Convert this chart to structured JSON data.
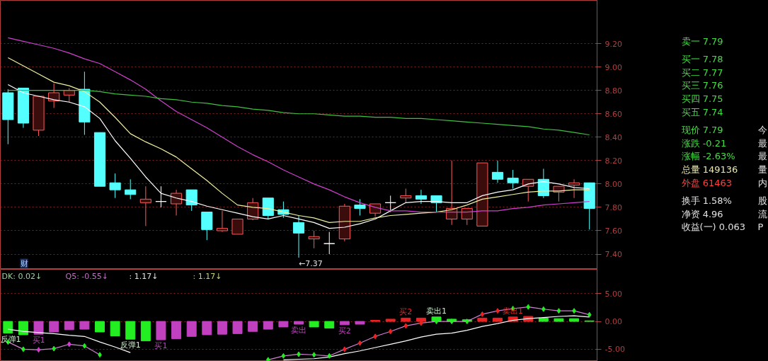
{
  "chart_data": [
    {
      "type": "candlestick",
      "categories": [
        null,
        null,
        null,
        null,
        null,
        null,
        null,
        null,
        null,
        null,
        null,
        null,
        null,
        null,
        null,
        null,
        null,
        null,
        null,
        null,
        null,
        null,
        null,
        null,
        null,
        null,
        null,
        null,
        null,
        null,
        null,
        null,
        null,
        null,
        null,
        null,
        null,
        null,
        null
      ],
      "ohlc": [
        [
          8.78,
          8.81,
          8.34,
          8.55
        ],
        [
          8.82,
          8.82,
          8.48,
          8.52
        ],
        [
          8.46,
          8.75,
          8.41,
          8.75
        ],
        [
          8.71,
          8.86,
          8.65,
          8.78
        ],
        [
          8.76,
          8.82,
          8.7,
          8.8
        ],
        [
          8.81,
          8.96,
          8.42,
          8.53
        ],
        [
          8.44,
          8.44,
          7.98,
          7.98
        ],
        [
          8.01,
          8.09,
          7.88,
          7.95
        ],
        [
          7.95,
          8.04,
          7.87,
          7.91
        ],
        [
          7.84,
          7.98,
          7.64,
          7.87
        ],
        [
          7.85,
          7.98,
          7.8,
          7.85
        ],
        [
          7.83,
          7.95,
          7.73,
          7.92
        ],
        [
          7.95,
          7.95,
          7.77,
          7.82
        ],
        [
          7.76,
          7.76,
          7.52,
          7.61
        ],
        [
          7.6,
          7.77,
          7.59,
          7.62
        ],
        [
          7.57,
          7.7,
          7.57,
          7.7
        ],
        [
          7.7,
          7.88,
          7.69,
          7.84
        ],
        [
          7.88,
          7.88,
          7.7,
          7.73
        ],
        [
          7.78,
          7.85,
          7.71,
          7.74
        ],
        [
          7.67,
          7.73,
          7.37,
          7.58
        ],
        [
          7.53,
          7.6,
          7.45,
          7.55
        ],
        [
          7.49,
          7.59,
          7.4,
          7.49
        ],
        [
          7.53,
          7.83,
          7.51,
          7.81
        ],
        [
          7.82,
          7.87,
          7.73,
          7.79
        ],
        [
          7.75,
          7.83,
          7.72,
          7.83
        ],
        [
          7.84,
          7.9,
          7.76,
          7.84
        ],
        [
          7.88,
          7.96,
          7.84,
          7.9
        ],
        [
          7.9,
          7.95,
          7.83,
          7.87
        ],
        [
          7.9,
          7.9,
          7.76,
          7.84
        ],
        [
          7.7,
          8.2,
          7.65,
          7.79
        ],
        [
          7.7,
          7.79,
          7.65,
          7.79
        ],
        [
          7.64,
          8.18,
          7.64,
          8.18
        ],
        [
          8.1,
          8.2,
          8.01,
          8.04
        ],
        [
          8.05,
          8.12,
          7.96,
          8.01
        ],
        [
          7.98,
          8.04,
          7.85,
          8.04
        ],
        [
          8.04,
          8.13,
          7.88,
          7.9
        ],
        [
          7.93,
          7.98,
          7.85,
          7.98
        ],
        [
          7.99,
          8.04,
          7.88,
          8.01
        ],
        [
          8.01,
          8.01,
          7.61,
          7.79
        ]
      ],
      "colors": [
        "#54ffff",
        "#54ffff",
        "#ff5a5a",
        "#ff5a5a",
        "#ff5a5a",
        "#54ffff",
        "#54ffff",
        "#54ffff",
        "#54ffff",
        "#ff5a5a",
        "#ffffff",
        "#ff5a5a",
        "#54ffff",
        "#54ffff",
        "#ff5a5a",
        "#ff5a5a",
        "#ff5a5a",
        "#54ffff",
        "#54ffff",
        "#54ffff",
        "#ff5a5a",
        "#ffffff",
        "#ff5a5a",
        "#54ffff",
        "#ff5a5a",
        "#ffffff",
        "#ff5a5a",
        "#54ffff",
        "#54ffff",
        "#ff5a5a",
        "#ff5a5a",
        "#ff5a5a",
        "#54ffff",
        "#54ffff",
        "#ff5a5a",
        "#54ffff",
        "#ff5a5a",
        "#ff5a5a",
        "#54ffff"
      ],
      "series": [
        {
          "type": "line",
          "color": "#ffffff",
          "values": [
            8.85,
            8.78,
            8.75,
            8.72,
            8.7,
            8.66,
            8.56,
            8.37,
            8.22,
            8.06,
            7.92,
            7.88,
            7.85,
            7.81,
            7.78,
            7.75,
            7.72,
            7.7,
            7.73,
            7.7,
            7.67,
            7.62,
            7.63,
            7.66,
            7.7,
            7.77,
            7.84,
            7.85,
            7.85,
            7.84,
            7.84,
            7.9,
            7.93,
            7.95,
            8.0,
            8.02,
            8.0,
            7.97,
            7.96
          ]
        },
        {
          "type": "line",
          "color": "#f0f0a0",
          "values": [
            9.08,
            9.01,
            8.94,
            8.87,
            8.84,
            8.79,
            8.7,
            8.57,
            8.43,
            8.36,
            8.3,
            8.23,
            8.13,
            8.03,
            7.92,
            7.82,
            7.8,
            7.79,
            7.76,
            7.73,
            7.71,
            7.67,
            7.68,
            7.68,
            7.71,
            7.73,
            7.74,
            7.75,
            7.76,
            7.78,
            7.82,
            7.87,
            7.89,
            7.91,
            7.93,
            7.94,
            7.94,
            7.95,
            7.95
          ]
        },
        {
          "type": "line",
          "color": "#d040d0",
          "values": [
            9.25,
            9.22,
            9.19,
            9.16,
            9.12,
            9.07,
            9.03,
            8.96,
            8.89,
            8.81,
            8.71,
            8.62,
            8.55,
            8.48,
            8.4,
            8.32,
            8.25,
            8.19,
            8.12,
            8.06,
            8.0,
            7.95,
            7.89,
            7.84,
            7.8,
            7.77,
            7.77,
            7.76,
            7.76,
            7.76,
            7.76,
            7.77,
            7.77,
            7.79,
            7.8,
            7.82,
            7.83,
            7.84,
            7.85
          ]
        },
        {
          "type": "line",
          "color": "#40c040",
          "values": [
            8.8,
            8.8,
            8.8,
            8.8,
            8.8,
            8.8,
            8.79,
            8.77,
            8.76,
            8.75,
            8.73,
            8.72,
            8.7,
            8.69,
            8.67,
            8.66,
            8.64,
            8.63,
            8.61,
            8.6,
            8.6,
            8.59,
            8.58,
            8.58,
            8.57,
            8.57,
            8.56,
            8.56,
            8.55,
            8.54,
            8.53,
            8.52,
            8.51,
            8.5,
            8.49,
            8.47,
            8.46,
            8.44,
            8.42
          ]
        }
      ],
      "ylim": [
        7.27,
        9.57
      ],
      "yticks": [
        {
          "value": 9.2,
          "label": "9.20"
        },
        {
          "value": 9.0,
          "label": "9.00"
        },
        {
          "value": 8.8,
          "label": "8.80"
        },
        {
          "value": 8.6,
          "label": "8.60"
        },
        {
          "value": 8.4,
          "label": "8.40"
        },
        {
          "value": 8.2,
          "label": "8.20"
        },
        {
          "value": 8.0,
          "label": "8.00"
        },
        {
          "value": 7.8,
          "label": "7.80"
        },
        {
          "value": 7.6,
          "label": "7.60"
        },
        {
          "value": 7.4,
          "label": "7.40"
        }
      ],
      "grid": "y",
      "tick_labels": "y",
      "annotations": [
        "←7.37",
        "财"
      ]
    },
    {
      "type": "bar",
      "categories": [
        null,
        null,
        null,
        null,
        null,
        null,
        null,
        null,
        null,
        null,
        null,
        null,
        null,
        null,
        null,
        null,
        null,
        null,
        null,
        null,
        null,
        null,
        null,
        null,
        null,
        null,
        null,
        null,
        null,
        null,
        null,
        null,
        null,
        null,
        null,
        null,
        null,
        null,
        null
      ],
      "series": [
        {
          "type": "bar",
          "values": [
            -2.1,
            -2.4,
            -2.3,
            -1.9,
            -1.5,
            -1.4,
            -1.9,
            -2.6,
            -3.2,
            -3.5,
            -3.3,
            -3.1,
            -2.7,
            -2.4,
            -2.3,
            -2.2,
            -1.8,
            -1.4,
            -1.0,
            -0.5,
            -1.0,
            -1.2,
            -0.6,
            -0.5,
            0.2,
            0.4,
            0.6,
            0.6,
            0.8,
            0.4,
            0.3,
            0.6,
            0.6,
            0.8,
            0.9,
            0.6,
            0.5,
            0.5,
            0.1
          ],
          "colors": [
            "#22ee22",
            "#22ee22",
            "#c040c0",
            "#c040c0",
            "#c040c0",
            "#c040c0",
            "#22ee22",
            "#22ee22",
            "#22ee22",
            "#22ee22",
            "#c040c0",
            "#c040c0",
            "#c040c0",
            "#c040c0",
            "#c040c0",
            "#c040c0",
            "#c040c0",
            "#c040c0",
            "#c040c0",
            "#c040c0",
            "#22ee22",
            "#22ee22",
            "#c040c0",
            "#c040c0",
            "#ee2222",
            "#ee2222",
            "#ee2222",
            "#ee2222",
            "#22ee22",
            "#22ee22",
            "#22ee22",
            "#ee2222",
            "#ee2222",
            "#ee2222",
            "#ee2222",
            "#22ee22",
            "#22ee22",
            "#22ee22",
            "#22ee22"
          ],
          "value_labels": [
            "反弹1",
            null,
            "买1",
            null,
            null,
            null,
            null,
            null,
            "反弹1",
            null,
            "买1",
            null,
            null,
            null,
            null,
            null,
            null,
            null,
            null,
            "卖出",
            null,
            null,
            "买2",
            null,
            null,
            null,
            "买2",
            null,
            "卖出1",
            null,
            null,
            null,
            null,
            "卖出1",
            null,
            null,
            null,
            null,
            null
          ]
        },
        {
          "type": "line",
          "color": "#ffffff",
          "values": [
            -1.4,
            -1.8,
            -2.0,
            -2.2,
            -2.5,
            -2.7,
            -3.7,
            -4.6,
            -5.6,
            null,
            null,
            null,
            null,
            null,
            null,
            null,
            null,
            null,
            null,
            null,
            null,
            null,
            null,
            null,
            null,
            null,
            null,
            null,
            null,
            null,
            null,
            null,
            null,
            null,
            null,
            null,
            null,
            null,
            null
          ]
        },
        {
          "type": "line",
          "color": "#ffffff",
          "values": [
            null,
            null,
            null,
            null,
            null,
            null,
            null,
            null,
            null,
            null,
            null,
            null,
            null,
            null,
            null,
            null,
            null,
            null,
            -6.9,
            -6.8,
            -6.7,
            -6.4,
            -5.8,
            -5.3,
            -4.7,
            -4.1,
            -3.5,
            -2.8,
            -2.3,
            -2.1,
            -1.6,
            -0.9,
            -0.4,
            0.2,
            0.5,
            0.7,
            0.9,
            1.0,
            0.8
          ]
        },
        {
          "type": "line",
          "color": "#d080d0",
          "marker": "diamond",
          "values": [
            -3.7,
            -5.0,
            -5.1,
            -4.9,
            -4.1,
            -4.4,
            -6.0,
            null,
            null,
            null,
            null,
            null,
            null,
            null,
            null,
            null,
            null,
            null,
            null,
            null,
            null,
            null,
            null,
            null,
            null,
            null,
            null,
            null,
            null,
            null,
            null,
            null,
            null,
            null,
            null,
            null,
            null,
            null,
            null
          ],
          "colors": [
            "#22ee22",
            "#22ee22",
            "#d040d0",
            "#22ee22",
            "#d040d0",
            "#22ee22",
            "#22ee22",
            "#d080d0",
            "#d080d0",
            "#d080d0",
            "#d080d0",
            "#d080d0",
            "#d080d0",
            "#d080d0",
            "#d080d0",
            "#d080d0",
            "#d080d0",
            "#d080d0",
            "#d080d0",
            "#d080d0",
            "#d080d0",
            "#d080d0",
            "#d080d0",
            "#d080d0",
            "#d080d0",
            "#d080d0",
            "#d080d0",
            "#d080d0",
            "#d080d0",
            "#d080d0",
            "#d080d0",
            "#d080d0",
            "#d080d0",
            "#d080d0",
            "#d080d0",
            "#d080d0",
            "#d080d0",
            "#d080d0",
            "#d080d0"
          ]
        },
        {
          "type": "line",
          "color": "#d080d0",
          "marker": "diamond",
          "values": [
            null,
            null,
            null,
            null,
            null,
            null,
            null,
            null,
            null,
            null,
            null,
            null,
            null,
            null,
            null,
            null,
            null,
            -6.9,
            -6.2,
            -5.9,
            -6.0,
            -6.2,
            -5.0,
            -3.9,
            -2.7,
            -1.8,
            -0.8,
            -0.3,
            0,
            0,
            0,
            1.3,
            1.9,
            2.3,
            2.6,
            2.2,
            1.9,
            1.9,
            1.2
          ],
          "colors": [
            "#d080d0",
            "#d080d0",
            "#d080d0",
            "#d080d0",
            "#d080d0",
            "#d080d0",
            "#d080d0",
            "#d080d0",
            "#d080d0",
            "#d080d0",
            "#d080d0",
            "#d080d0",
            "#d080d0",
            "#d080d0",
            "#d080d0",
            "#d080d0",
            "#d080d0",
            "#22ee22",
            "#22ee22",
            "#22ee22",
            "#22ee22",
            "#22ee22",
            "#ee2222",
            "#ee2222",
            "#ee2222",
            "#ee2222",
            "#ee2222",
            "#ee2222",
            "#22ee22",
            "#22ee22",
            "#22ee22",
            "#ee2222",
            "#ee2222",
            "#22ee22",
            "#22ee22",
            "#22ee22",
            "#22ee22",
            "#22ee22",
            "#22ee22"
          ]
        }
      ],
      "ylim": [
        -7.18,
        9.36
      ],
      "yticks": [
        {
          "value": 5,
          "label": "5.00"
        },
        {
          "value": 0,
          "label": "0.00"
        },
        {
          "value": -5,
          "label": "-5.00"
        }
      ],
      "grid": "y",
      "tick_labels": "y",
      "annotations": [
        "DK: 0.02↓",
        "Q5: -0.55↓",
        ": 1.17↓",
        ": 1.17↓"
      ]
    },
    {
      "type": "other",
      "categories": [
        "卖一",
        "买一",
        "买二",
        "买三",
        "买四",
        "买五",
        "现价",
        "涨跌",
        "涨幅",
        "总量",
        "外盘",
        "换手",
        "净资",
        "收益(一)"
      ],
      "value_labels": [
        "7.79",
        "7.78",
        "7.77",
        "7.76",
        "7.75",
        "7.74",
        "7.79",
        "-0.21",
        "-2.63%",
        "149136",
        "61463",
        "1.58%",
        "4.96",
        "0.063"
      ],
      "colors": [
        "#44dd44",
        "#44dd44",
        "#44dd44",
        "#44dd44",
        "#44dd44",
        "#44dd44",
        "#44dd44",
        "#44dd44",
        "#44dd44",
        "#e8e8b0",
        "#ff4040",
        "#e0e0e0",
        "#e0e0e0",
        "#e0e0e0"
      ],
      "annotations": [
        null,
        null,
        null,
        null,
        null,
        null,
        "今",
        "最",
        "最",
        "量",
        "内",
        "股",
        "流",
        "P"
      ]
    }
  ]
}
